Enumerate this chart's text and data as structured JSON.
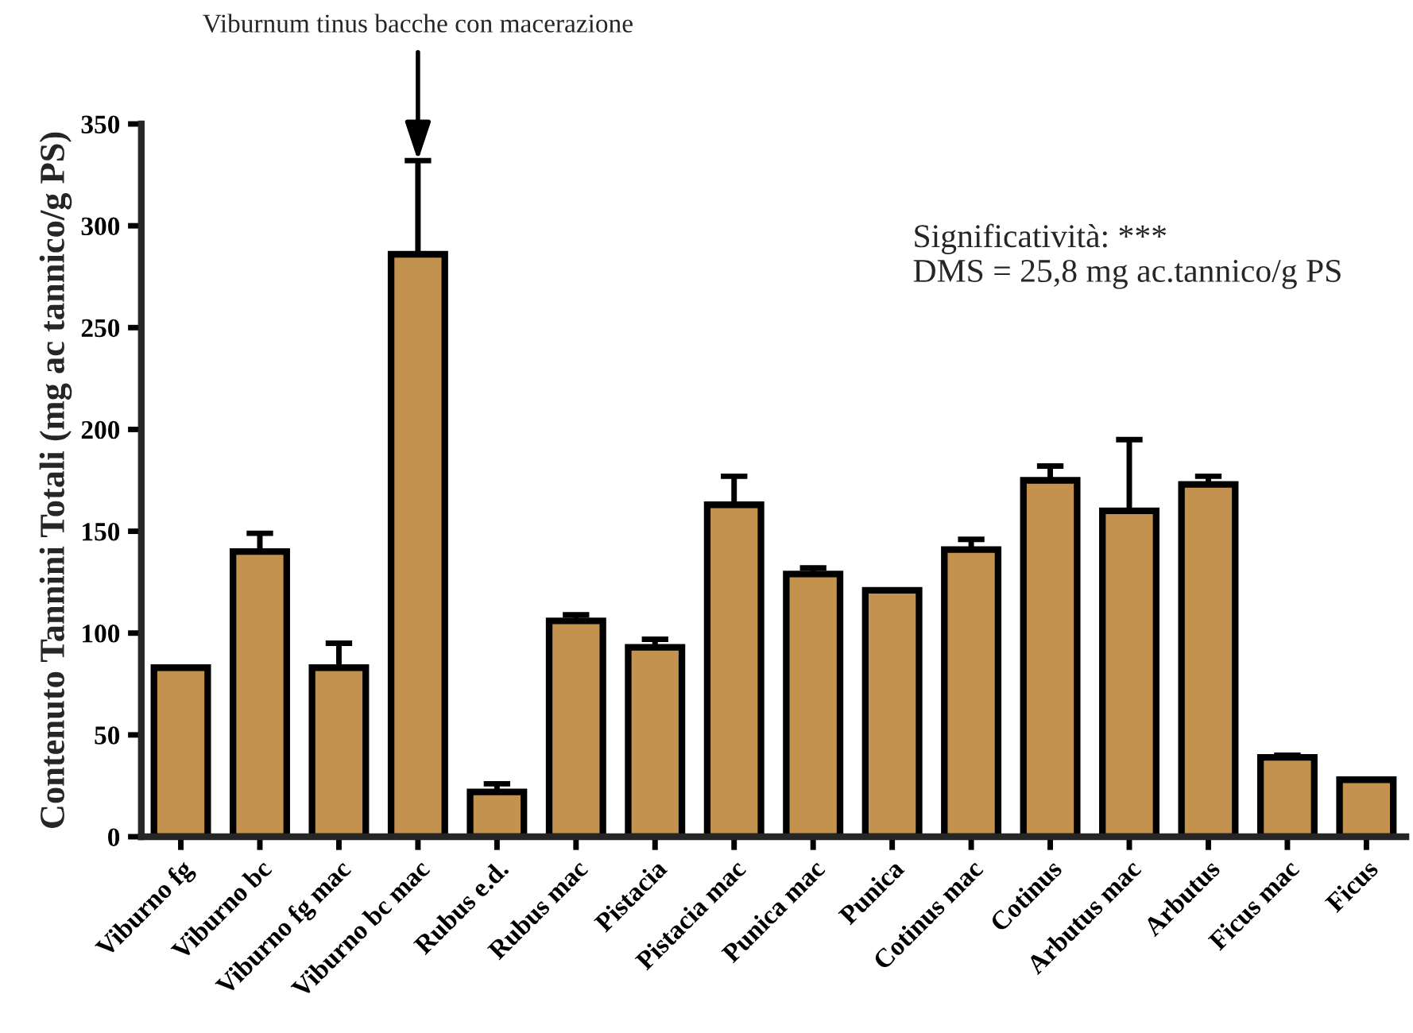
{
  "chart_data": {
    "type": "bar",
    "ylabel": "Contenuto Tannini Totali (mg ac tannico/g PS)",
    "categories": [
      "Viburno fg",
      "Viburno bc",
      "Viburno fg mac",
      "Viburno bc mac",
      "Rubus e.d.",
      "Rubus mac",
      "Pistacia",
      "Pistacia mac",
      "Punica mac",
      "Punica",
      "Cotinus mac",
      "Cotinus",
      "Arbutus mac",
      "Arbutus",
      "Ficus mac",
      "Ficus"
    ],
    "values": [
      83,
      140,
      83,
      286,
      22,
      106,
      93,
      163,
      129,
      121,
      141,
      175,
      160,
      173,
      39,
      28
    ],
    "errors": [
      null,
      9,
      12,
      46,
      4,
      3,
      4,
      14,
      3,
      null,
      5,
      7,
      35,
      4,
      1,
      null
    ],
    "color": "#c4924f",
    "ylim": [
      0,
      350
    ],
    "yticks": [
      0,
      50,
      100,
      150,
      200,
      250,
      300,
      350
    ],
    "grid": false,
    "annotations": [
      {
        "text": "Viburnum tinus bacche con macerazione",
        "x": "Viburno bc mac",
        "y": 332
      },
      "Significatività: ***\nDMS = 25,8 mg ac.tannico/g PS"
    ]
  }
}
